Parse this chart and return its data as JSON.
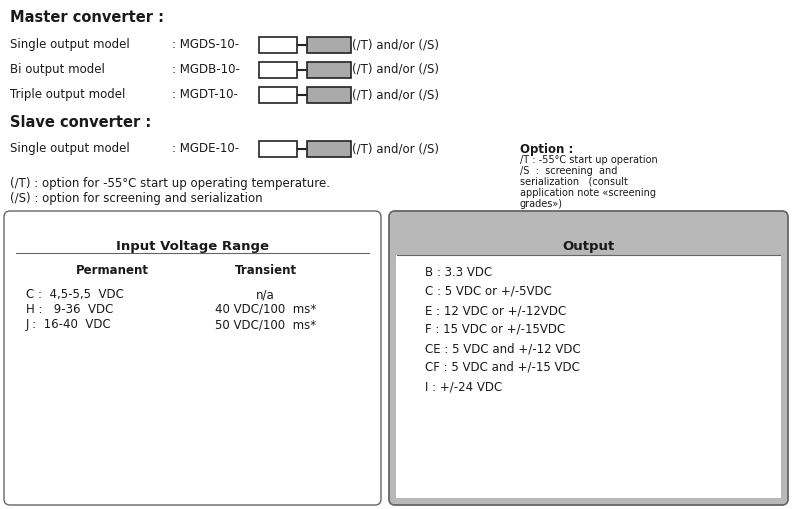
{
  "bg_color": "#ffffff",
  "title_master": "Master converter :",
  "title_slave": "Slave converter :",
  "master_rows": [
    {
      "label": "Single output model",
      "code": ": MGDS-10-",
      "suffix": "(/T) and/or (/S)"
    },
    {
      "label": "Bi output model",
      "code": ": MGDB-10-",
      "suffix": "(/T) and/or (/S)"
    },
    {
      "label": "Triple output model",
      "code": ": MGDT-10-",
      "suffix": "(/T) and/or (/S)"
    }
  ],
  "slave_rows": [
    {
      "label": "Single output model",
      "code": ": MGDE-10-",
      "suffix": "(/T) and/or (/S)"
    }
  ],
  "footnote1": "(/T) : option for -55°C start up operating temperature.",
  "footnote2": "(/S) : option for screening and serialization",
  "option_title": "Option :",
  "option_lines": [
    "/T : -55°C start up operation",
    "/S  :  screening  and",
    "serialization   (consult",
    "application note «screening",
    "grades»)"
  ],
  "input_table_title": "Input Voltage Range",
  "input_col1_header": "Permanent",
  "input_col2_header": "Transient",
  "input_rows": [
    {
      "perm": "C :  4,5-5,5  VDC",
      "trans": "n/a"
    },
    {
      "perm": "H :   9-36  VDC",
      "trans": "40 VDC/100  ms*"
    },
    {
      "perm": "J :  16-40  VDC",
      "trans": "50 VDC/100  ms*"
    }
  ],
  "output_table_title": "Output",
  "output_items": [
    "B : 3.3 VDC",
    "C : 5 VDC or +/-5VDC",
    "E : 12 VDC or +/-12VDC",
    "F : 15 VDC or +/-15VDC",
    "CE : 5 VDC and +/-12 VDC",
    "CF : 5 VDC and +/-15 VDC",
    "I : +/-24 VDC"
  ],
  "box_outline_color": "#222222",
  "box_white_fill": "#ffffff",
  "box_gray_fill": "#aaaaaa",
  "header_gray_fill": "#b8b8b8",
  "table_border_color": "#666666",
  "text_color": "#1a1a1a"
}
